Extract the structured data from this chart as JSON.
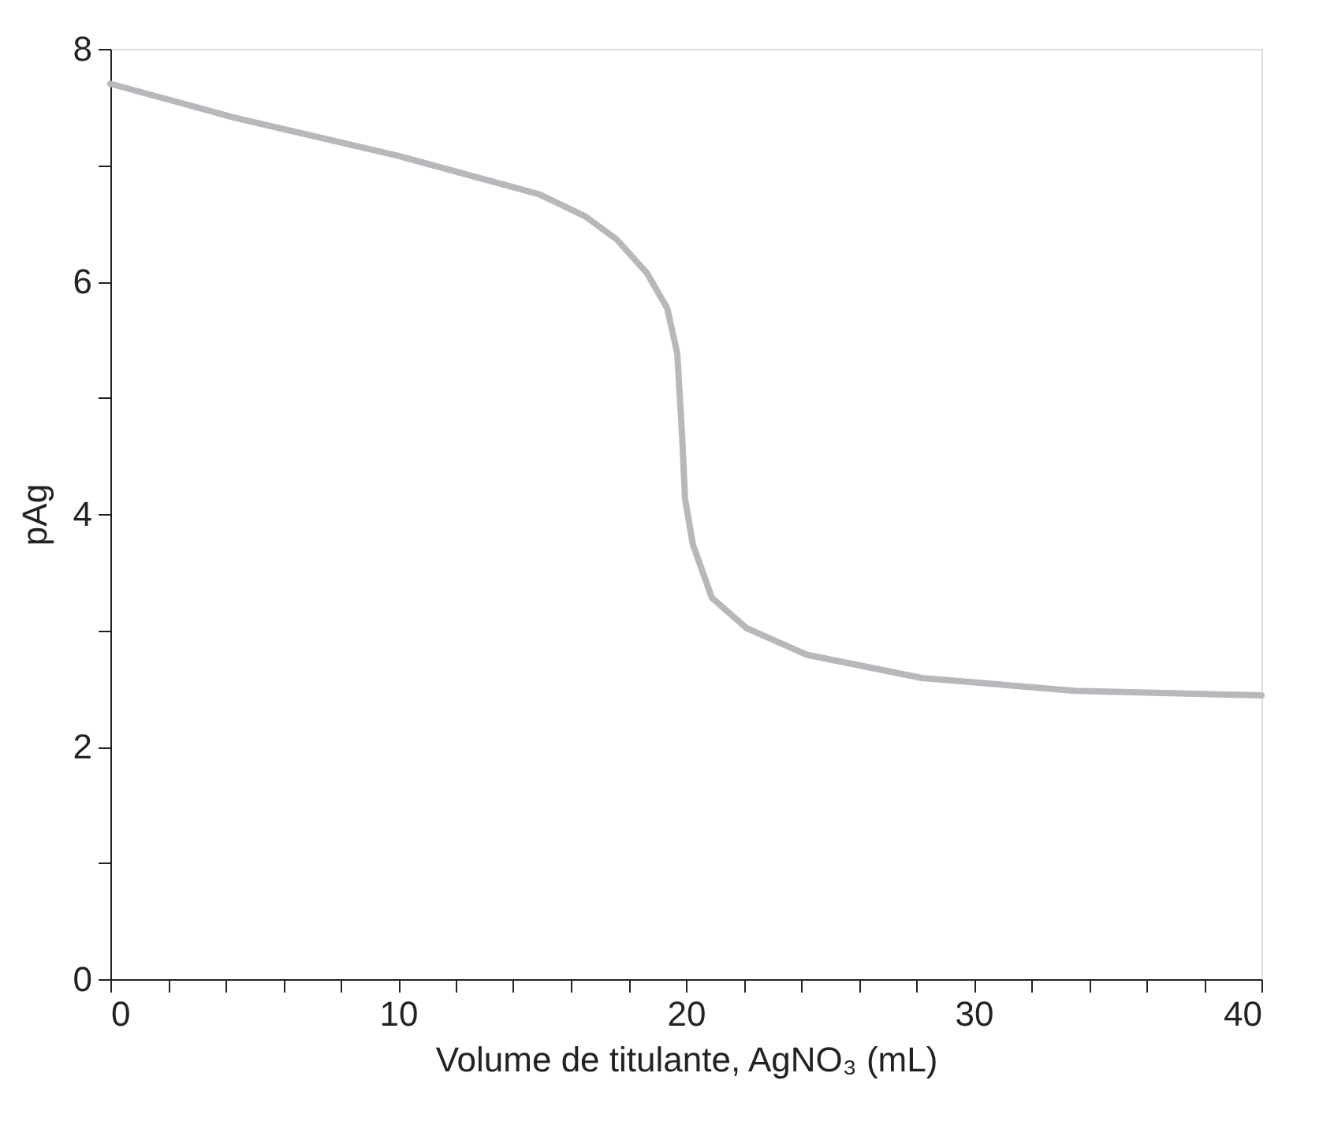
{
  "chart_data": {
    "type": "line",
    "xlabel": "Volume de titulante, AgNO₃ (mL)",
    "ylabel": "pAg",
    "x": [
      0,
      4.3,
      10,
      14.9,
      16.5,
      17.6,
      18.65,
      19.35,
      19.7,
      19.87,
      19.97,
      20.24,
      20.9,
      22.1,
      24.2,
      28.2,
      33.5,
      40
    ],
    "series": [
      {
        "color": "#b8b8bc",
        "values": [
          7.7,
          7.41,
          7.08,
          6.75,
          6.56,
          6.36,
          6.07,
          5.77,
          5.38,
          4.66,
          4.13,
          3.74,
          3.28,
          3.02,
          2.79,
          2.59,
          2.48,
          2.44
        ]
      }
    ],
    "xlim": [
      0,
      40
    ],
    "ylim": [
      0,
      8
    ],
    "xticks": [
      0,
      {
        "value": 2,
        "label": null
      },
      {
        "value": 4,
        "label": null
      },
      {
        "value": 6,
        "label": null
      },
      {
        "value": 8,
        "label": null
      },
      10,
      {
        "value": 12,
        "label": null
      },
      {
        "value": 14,
        "label": null
      },
      {
        "value": 16,
        "label": null
      },
      {
        "value": 18,
        "label": null
      },
      20,
      {
        "value": 22,
        "label": null
      },
      {
        "value": 24,
        "label": null
      },
      {
        "value": 26,
        "label": null
      },
      {
        "value": 28,
        "label": null
      },
      30,
      {
        "value": 32,
        "label": null
      },
      {
        "value": 34,
        "label": null
      },
      {
        "value": 36,
        "label": null
      },
      {
        "value": 38,
        "label": null
      },
      40
    ],
    "yticks": [
      0,
      {
        "value": 1,
        "label": null
      },
      2,
      {
        "value": 3,
        "label": null
      },
      4,
      {
        "value": 5,
        "label": null
      },
      6,
      {
        "value": 7,
        "label": null
      },
      8
    ],
    "grid": false,
    "marker": "none",
    "line_style": "solid",
    "legend": false
  }
}
